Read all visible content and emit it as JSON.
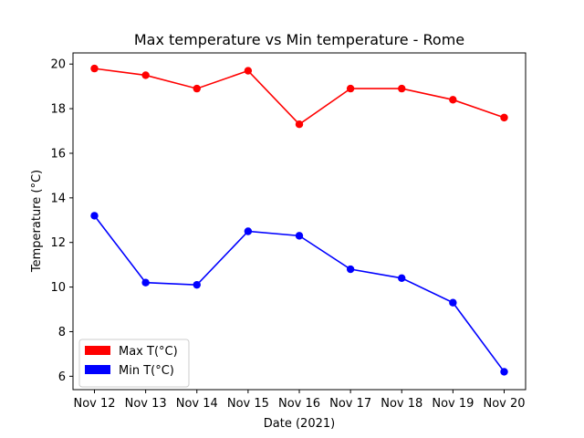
{
  "chart_data": {
    "type": "line",
    "title": "Max temperature vs Min temperature - Rome",
    "xlabel": "Date (2021)",
    "ylabel": "Temperature (°C)",
    "categories": [
      "Nov 12",
      "Nov 13",
      "Nov 14",
      "Nov 15",
      "Nov 16",
      "Nov 17",
      "Nov 18",
      "Nov 19",
      "Nov 20"
    ],
    "yticks": [
      6,
      8,
      10,
      12,
      14,
      16,
      18,
      20
    ],
    "ylim": [
      5.4,
      20.5
    ],
    "grid": false,
    "legend_position": "lower-left",
    "series": [
      {
        "name": "Max T(°C)",
        "color": "#ff0000",
        "values": [
          19.8,
          19.5,
          18.9,
          19.7,
          17.3,
          18.9,
          18.9,
          18.4,
          17.6
        ]
      },
      {
        "name": "Min T(°C)",
        "color": "#0000ff",
        "values": [
          13.2,
          10.2,
          10.1,
          12.5,
          12.3,
          10.8,
          10.4,
          9.3,
          6.2
        ]
      }
    ]
  }
}
